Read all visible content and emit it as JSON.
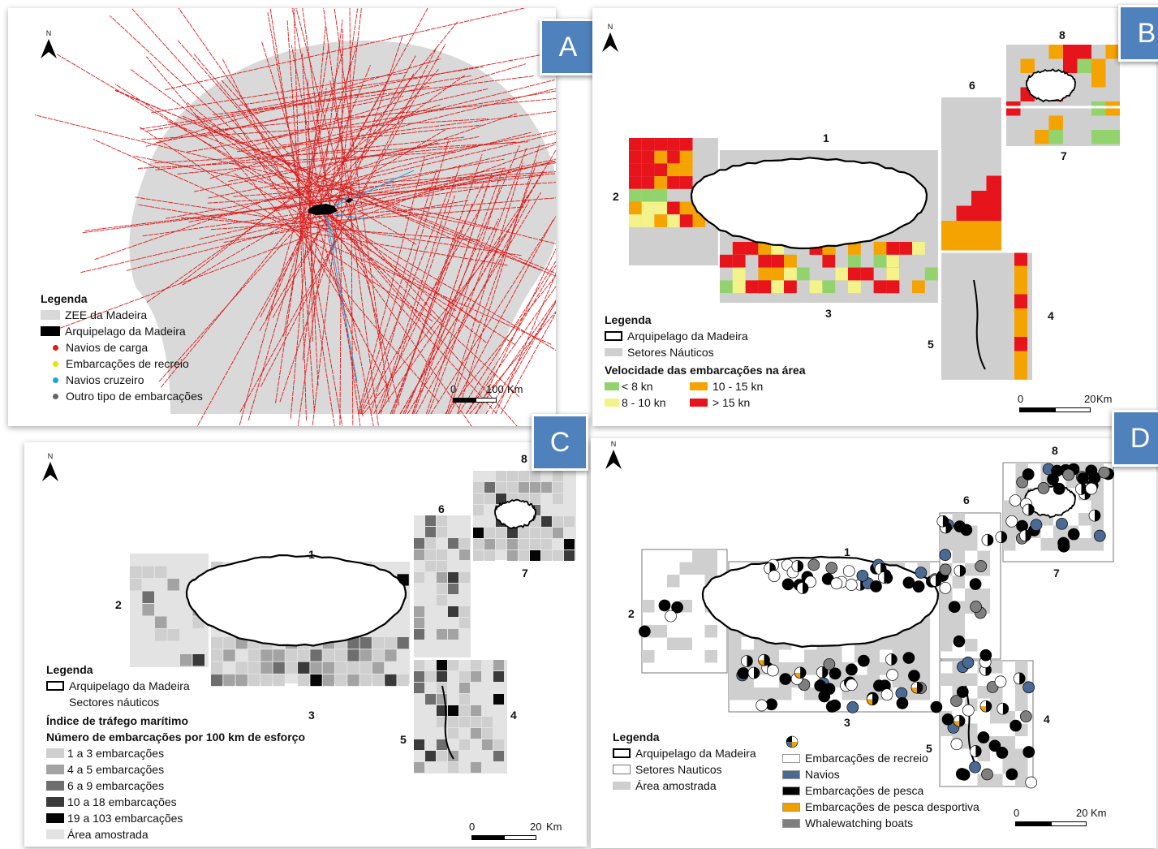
{
  "panels": {
    "A": {
      "badge": "A",
      "north": "N",
      "legend": {
        "title": "Legenda",
        "items": [
          {
            "label": "ZEE da Madeira",
            "color": "#d9d9d9",
            "kind": "patch"
          },
          {
            "label": "Arquipelago da Madeira",
            "color": "#000000",
            "kind": "patch"
          },
          {
            "label": "Navios de carga",
            "color": "#e31a1c",
            "kind": "dot"
          },
          {
            "label": "Embarcações de recreio",
            "color": "#f0e000",
            "kind": "dot"
          },
          {
            "label": "Navios cruzeiro",
            "color": "#1ea1e8",
            "kind": "dot"
          },
          {
            "label": "Outro tipo de embarcações",
            "color": "#666666",
            "kind": "dot"
          }
        ]
      },
      "scale": {
        "start": "0",
        "end": "100",
        "unit": "Km"
      }
    },
    "B": {
      "badge": "B",
      "north": "N",
      "sectors": [
        "1",
        "2",
        "3",
        "4",
        "5",
        "6",
        "7",
        "8"
      ],
      "legend": {
        "title": "Legenda",
        "items": [
          {
            "label": "Arquipelago da Madeira"
          },
          {
            "label": "Setores Náuticos"
          }
        ],
        "speed_title": "Velocidade das embarcações na área",
        "speed_items": [
          {
            "label": "< 8 kn",
            "color": "#92d36e"
          },
          {
            "label": "8 - 10 kn",
            "color": "#f3f38a"
          },
          {
            "label": "10 - 15 kn",
            "color": "#f5a300"
          },
          {
            "label": "> 15 kn",
            "color": "#e8141b"
          }
        ]
      },
      "scale": {
        "start": "0",
        "end": "20",
        "unit": "Km"
      }
    },
    "C": {
      "badge": "C",
      "north": "N",
      "sectors": [
        "1",
        "2",
        "3",
        "4",
        "5",
        "6",
        "7",
        "8"
      ],
      "legend": {
        "title": "Legenda",
        "items": [
          {
            "label": "Arquipelago da Madeira"
          },
          {
            "label": "Sectores náuticos"
          }
        ],
        "index_title": "Índice de tráfego marítimo",
        "index_subtitle": "Número de embarcações por 100 km de esforço",
        "classes": [
          {
            "label": "1  a  3  embarcações",
            "color": "#cfcfcf"
          },
          {
            "label": "4  a  5  embarcações",
            "color": "#a3a3a3"
          },
          {
            "label": "6  a  9  embarcações",
            "color": "#6e6e6e"
          },
          {
            "label": "10  a  18  embarcações",
            "color": "#3a3a3a"
          },
          {
            "label": "19  a  103 embarcações",
            "color": "#050505"
          },
          {
            "label": "Área amostrada",
            "color": "#e3e3e3"
          }
        ]
      },
      "scale": {
        "start": "0",
        "end": "20",
        "unit": "Km"
      }
    },
    "D": {
      "badge": "D",
      "north": "N",
      "sectors": [
        "1",
        "2",
        "3",
        "4",
        "5",
        "6",
        "7",
        "8"
      ],
      "legend": {
        "title": "Legenda",
        "items": [
          {
            "label": "Arquipelago da Madeira"
          },
          {
            "label": "Setores Nauticos"
          },
          {
            "label": "Área amostrada"
          }
        ],
        "vessel_items": [
          {
            "label": "Embarcações de recreio",
            "color": "#ffffff"
          },
          {
            "label": "Navios",
            "color": "#4b6a93"
          },
          {
            "label": "Embarcações de pesca",
            "color": "#000000"
          },
          {
            "label": "Embarcações de pesca desportiva",
            "color": "#f0a000"
          },
          {
            "label": "Whalewatching boats",
            "color": "#7f7f7f"
          }
        ]
      },
      "scale": {
        "start": "0",
        "end": "20",
        "unit": "Km"
      }
    }
  }
}
